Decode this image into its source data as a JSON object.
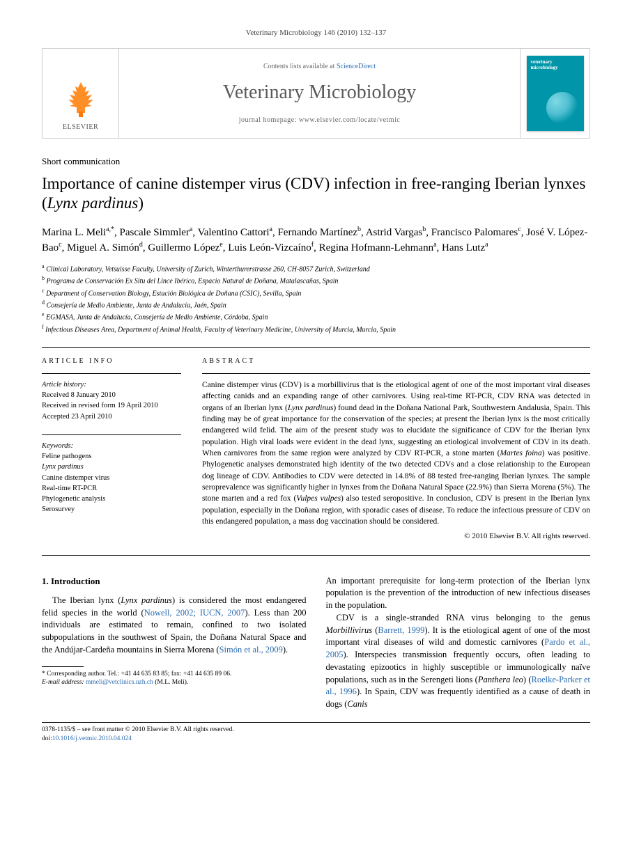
{
  "running_head": "Veterinary Microbiology 146 (2010) 132–137",
  "topbar": {
    "contents_prefix": "Contents lists available at ",
    "contents_link": "ScienceDirect",
    "journal_name": "Veterinary Microbiology",
    "homepage_prefix": "journal homepage: ",
    "homepage_url": "www.elsevier.com/locate/vetmic",
    "elsevier_label": "ELSEVIER",
    "cover_title_line1": "veterinary",
    "cover_title_line2": "microbiology"
  },
  "article_type": "Short communication",
  "title_html": "Importance of canine distemper virus (CDV) infection in free-ranging Iberian lynxes (<em>Lynx pardinus</em>)",
  "authors_html": "Marina L. Meli<sup>a,*</sup>, Pascale Simmler<sup>a</sup>, Valentino Cattori<sup>a</sup>, Fernando Martínez<sup>b</sup>, Astrid Vargas<sup>b</sup>, Francisco Palomares<sup>c</sup>, José V. López-Bao<sup>c</sup>, Miguel A. Simón<sup>d</sup>, Guillermo López<sup>e</sup>, Luis León-Vizcaíno<sup>f</sup>, Regina Hofmann-Lehmann<sup>a</sup>, Hans Lutz<sup>a</sup>",
  "affiliations": [
    {
      "sup": "a",
      "text": "Clinical Laboratory, Vetsuisse Faculty, University of Zurich, Winterthurerstrasse 260, CH-8057 Zurich, Switzerland"
    },
    {
      "sup": "b",
      "text": "Programa de Conservación Ex Situ del Lince Ibérico, Espacio Natural de Doñana, Matalascañas, Spain"
    },
    {
      "sup": "c",
      "text": "Department of Conservation Biology, Estación Biológica de Doñana (CSIC), Sevilla, Spain"
    },
    {
      "sup": "d",
      "text": "Consejería de Medio Ambiente, Junta de Andalucía, Jaén, Spain"
    },
    {
      "sup": "e",
      "text": "EGMASA, Junta de Andalucía, Consejería de Medio Ambiente, Córdoba, Spain"
    },
    {
      "sup": "f",
      "text": "Infectious Diseases Area, Department of Animal Health, Faculty of Veterinary Medicine, University of Murcia, Murcia, Spain"
    }
  ],
  "info": {
    "label": "ARTICLE INFO",
    "history_hdr": "Article history:",
    "history": [
      "Received 8 January 2010",
      "Received in revised form 19 April 2010",
      "Accepted 23 April 2010"
    ],
    "keywords_hdr": "Keywords:",
    "keywords_html": [
      "Feline pathogens",
      "<em>Lynx pardinus</em>",
      "Canine distemper virus",
      "Real-time RT-PCR",
      "Phylogenetic analysis",
      "Serosurvey"
    ]
  },
  "abstract": {
    "label": "ABSTRACT",
    "text_html": "Canine distemper virus (CDV) is a morbillivirus that is the etiological agent of one of the most important viral diseases affecting canids and an expanding range of other carnivores. Using real-time RT-PCR, CDV RNA was detected in organs of an Iberian lynx (<em>Lynx pardinus</em>) found dead in the Doñana National Park, Southwestern Andalusia, Spain. This finding may be of great importance for the conservation of the species; at present the Iberian lynx is the most critically endangered wild felid. The aim of the present study was to elucidate the significance of CDV for the Iberian lynx population. High viral loads were evident in the dead lynx, suggesting an etiological involvement of CDV in its death. When carnivores from the same region were analyzed by CDV RT-PCR, a stone marten (<em>Martes foina</em>) was positive. Phylogenetic analyses demonstrated high identity of the two detected CDVs and a close relationship to the European dog lineage of CDV. Antibodies to CDV were detected in 14.8% of 88 tested free-ranging Iberian lynxes. The sample seroprevalence was significantly higher in lynxes from the Doñana Natural Space (22.9%) than Sierra Morena (5%). The stone marten and a red fox (<em>Vulpes vulpes</em>) also tested seropositive. In conclusion, CDV is present in the Iberian lynx population, especially in the Doñana region, with sporadic cases of disease. To reduce the infectious pressure of CDV on this endangered population, a mass dog vaccination should be considered.",
    "copyright": "© 2010 Elsevier B.V. All rights reserved."
  },
  "body": {
    "intro_heading": "1. Introduction",
    "left_para_html": "The Iberian lynx (<em>Lynx pardinus</em>) is considered the most endangered felid species in the world (<span class=\"cite\">Nowell, 2002; IUCN, 2007</span>). Less than 200 individuals are estimated to remain, confined to two isolated subpopulations in the southwest of Spain, the Doñana Natural Space and the Andújar-Cardeña mountains in Sierra Morena (<span class=\"cite\">Simón et al., 2009</span>).",
    "right_para1_html": "An important prerequisite for long-term protection of the Iberian lynx population is the prevention of the introduction of new infectious diseases in the population.",
    "right_para2_html": "CDV is a single-stranded RNA virus belonging to the genus <em>Morbillivirus</em> (<span class=\"cite\">Barrett, 1999</span>). It is the etiological agent of one of the most important viral diseases of wild and domestic carnivores (<span class=\"cite\">Pardo et al., 2005</span>). Interspecies transmission frequently occurs, often leading to devastating epizootics in highly susceptible or immunologically naïve populations, such as in the Serengeti lions (<em>Panthera leo</em>) (<span class=\"cite\">Roelke-Parker et al., 1996</span>). In Spain, CDV was frequently identified as a cause of death in dogs (<em>Canis</em>"
  },
  "footnote": {
    "corr_html": "* Corresponding author. Tel.: +41 44 635 83 85; fax: +41 44 635 89 06.",
    "email_label": "E-mail address:",
    "email": "mmeli@vetclinics.uzh.ch",
    "email_suffix": "(M.L. Meli)."
  },
  "footer": {
    "issn": "0378-1135/$ – see front matter © 2010 Elsevier B.V. All rights reserved.",
    "doi_label": "doi:",
    "doi": "10.1016/j.vetmic.2010.04.024"
  },
  "colors": {
    "elsevier_orange": "#ff7a00",
    "link_blue": "#2a6bb0",
    "cover_teal": "#0095a8"
  }
}
